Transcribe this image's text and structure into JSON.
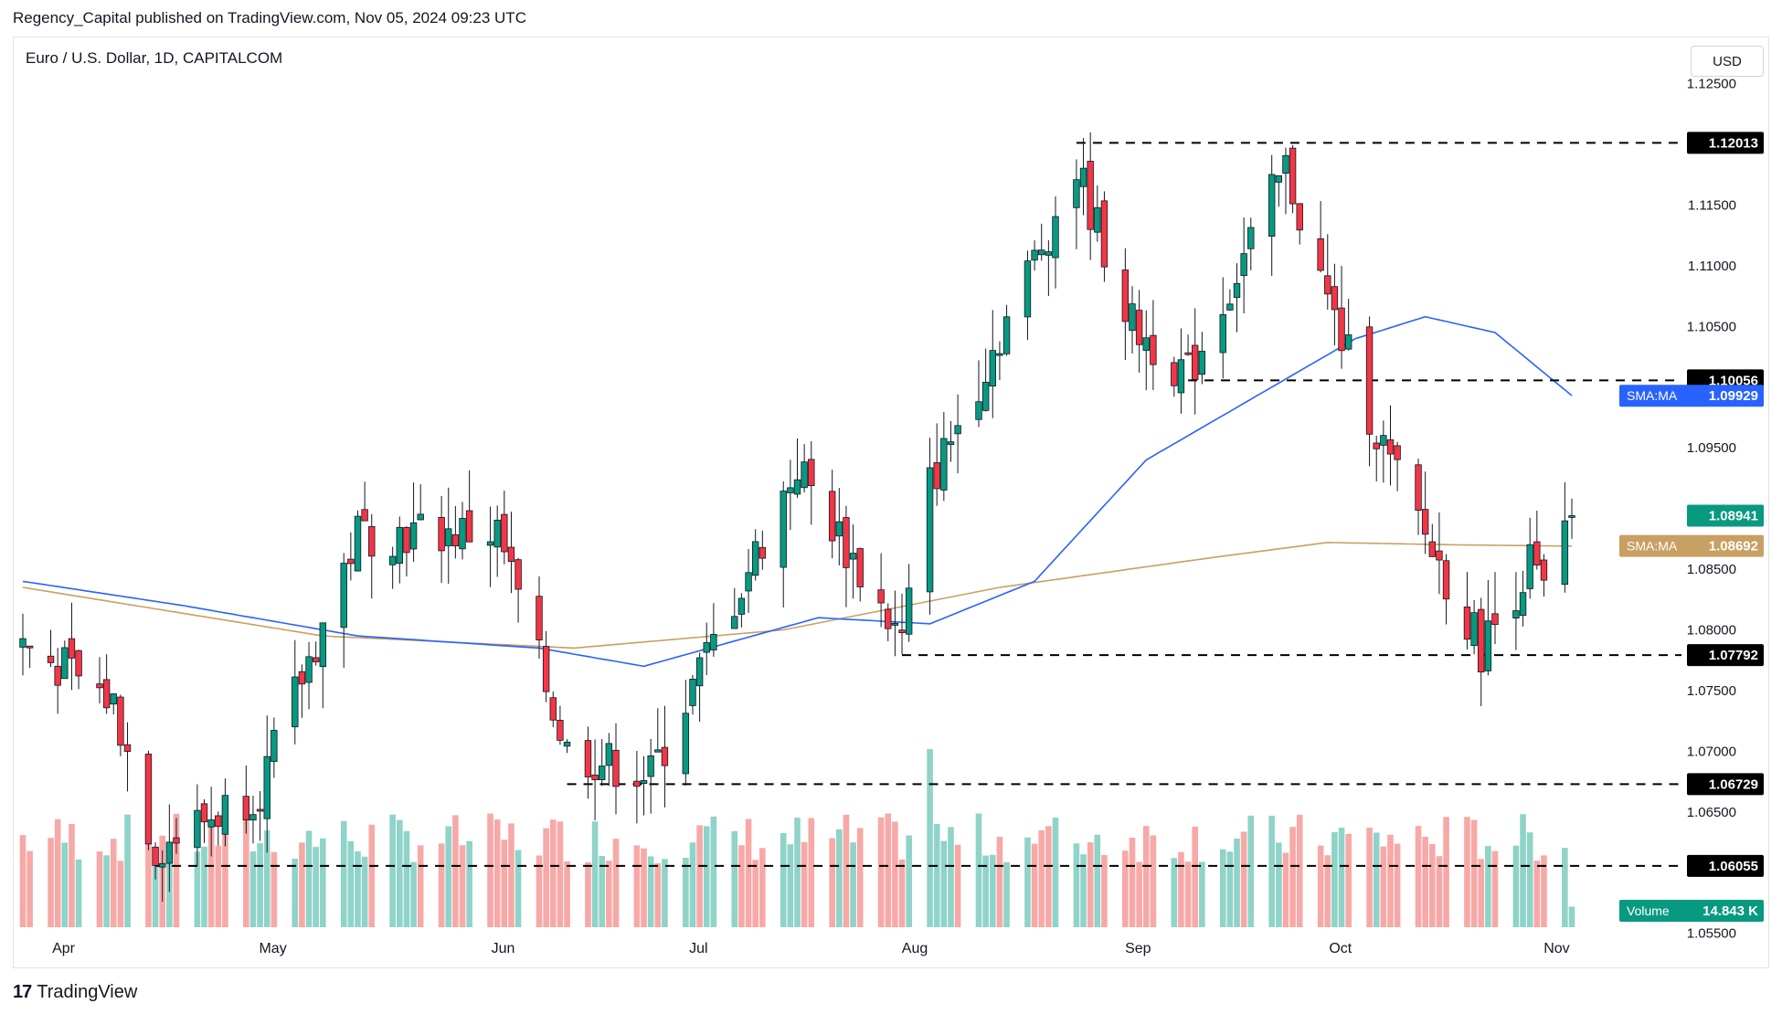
{
  "header": {
    "publish_line": "Regency_Capital published on TradingView.com, Nov 05, 2024 09:23 UTC"
  },
  "symbol": {
    "title": "Euro / U.S. Dollar, 1D, CAPITALCOM"
  },
  "currency_button": "USD",
  "footer": {
    "brand": "TradingView",
    "logo_glyph": "17"
  },
  "colors": {
    "up": "#089981",
    "down": "#f23645",
    "up_volume": "#8fd3c9",
    "down_volume": "#f7a9a7",
    "sma_fast": "#2962ff",
    "sma_slow": "#c8a063",
    "level_line": "#000000",
    "last_price_bg": "#089981"
  },
  "chart_data": {
    "type": "candlestick",
    "y_axis": {
      "ticks": [
        "1.12500",
        "1.11500",
        "1.11000",
        "1.10500",
        "1.09500",
        "1.08500",
        "1.08000",
        "1.07500",
        "1.07000",
        "1.06500",
        "1.05500"
      ],
      "range": [
        1.0555,
        1.1255
      ],
      "side": "right"
    },
    "x_axis": {
      "labels": [
        {
          "text": "Apr",
          "date": "2024-04-01"
        },
        {
          "text": "May",
          "date": "2024-05-01"
        },
        {
          "text": "Jun",
          "date": "2024-06-03"
        },
        {
          "text": "Jul",
          "date": "2024-07-01"
        },
        {
          "text": "Aug",
          "date": "2024-08-01"
        },
        {
          "text": "Sep",
          "date": "2024-09-02"
        },
        {
          "text": "Oct",
          "date": "2024-10-01"
        },
        {
          "text": "Nov",
          "date": "2024-11-01"
        }
      ]
    },
    "levels": [
      {
        "label": "1.12013",
        "value": 1.12013
      },
      {
        "label": "1.10056",
        "value": 1.10056
      },
      {
        "label": "1.07792",
        "value": 1.07792
      },
      {
        "label": "1.06729",
        "value": 1.06729
      },
      {
        "label": "1.06055",
        "value": 1.06055
      }
    ],
    "indicators": [
      {
        "name": "SMA:MA",
        "value": "1.09929",
        "color": "#2962ff"
      },
      {
        "name": "SMA:MA",
        "value": "1.08692",
        "color": "#c8a063"
      }
    ],
    "last_price": "1.08941",
    "volume": {
      "name": "Volume",
      "value": "14.843 K"
    },
    "candle_anchors": [
      {
        "date": "2024-03-28",
        "close": 1.079
      },
      {
        "date": "2024-04-10",
        "close": 1.074
      },
      {
        "date": "2024-04-16",
        "close": 1.062
      },
      {
        "date": "2024-05-01",
        "close": 1.067
      },
      {
        "date": "2024-05-15",
        "close": 1.088
      },
      {
        "date": "2024-06-04",
        "close": 1.088
      },
      {
        "date": "2024-06-14",
        "close": 1.07
      },
      {
        "date": "2024-06-26",
        "close": 1.068
      },
      {
        "date": "2024-07-17",
        "close": 1.0935
      },
      {
        "date": "2024-08-01",
        "close": 1.079
      },
      {
        "date": "2024-08-05",
        "close": 1.092
      },
      {
        "date": "2024-08-26",
        "close": 1.118
      },
      {
        "date": "2024-09-03",
        "close": 1.105
      },
      {
        "date": "2024-09-11",
        "close": 1.101
      },
      {
        "date": "2024-09-25",
        "close": 1.118
      },
      {
        "date": "2024-10-01",
        "close": 1.107
      },
      {
        "date": "2024-10-10",
        "close": 1.0935
      },
      {
        "date": "2024-10-23",
        "close": 1.0785
      },
      {
        "date": "2024-10-30",
        "close": 1.0855
      },
      {
        "date": "2024-11-01",
        "close": 1.083
      },
      {
        "date": "2024-11-05",
        "close": 1.08941
      }
    ],
    "sma_fast_anchors": [
      {
        "date": "2024-03-28",
        "value": 1.084
      },
      {
        "date": "2024-04-20",
        "value": 1.082
      },
      {
        "date": "2024-05-15",
        "value": 1.0795
      },
      {
        "date": "2024-06-10",
        "value": 1.0785
      },
      {
        "date": "2024-06-25",
        "value": 1.077
      },
      {
        "date": "2024-07-20",
        "value": 1.081
      },
      {
        "date": "2024-08-05",
        "value": 1.0805
      },
      {
        "date": "2024-08-20",
        "value": 1.084
      },
      {
        "date": "2024-09-05",
        "value": 1.094
      },
      {
        "date": "2024-09-20",
        "value": 1.099
      },
      {
        "date": "2024-10-05",
        "value": 1.104
      },
      {
        "date": "2024-10-15",
        "value": 1.1058
      },
      {
        "date": "2024-10-25",
        "value": 1.1045
      },
      {
        "date": "2024-11-05",
        "value": 1.0993
      }
    ],
    "sma_slow_anchors": [
      {
        "date": "2024-03-28",
        "value": 1.0835
      },
      {
        "date": "2024-05-10",
        "value": 1.0795
      },
      {
        "date": "2024-06-15",
        "value": 1.0785
      },
      {
        "date": "2024-07-15",
        "value": 1.08
      },
      {
        "date": "2024-08-15",
        "value": 1.0835
      },
      {
        "date": "2024-09-15",
        "value": 1.086
      },
      {
        "date": "2024-10-01",
        "value": 1.0872
      },
      {
        "date": "2024-10-20",
        "value": 1.087
      },
      {
        "date": "2024-11-05",
        "value": 1.0869
      }
    ],
    "date_range": [
      "2024-03-28",
      "2024-11-05"
    ]
  }
}
